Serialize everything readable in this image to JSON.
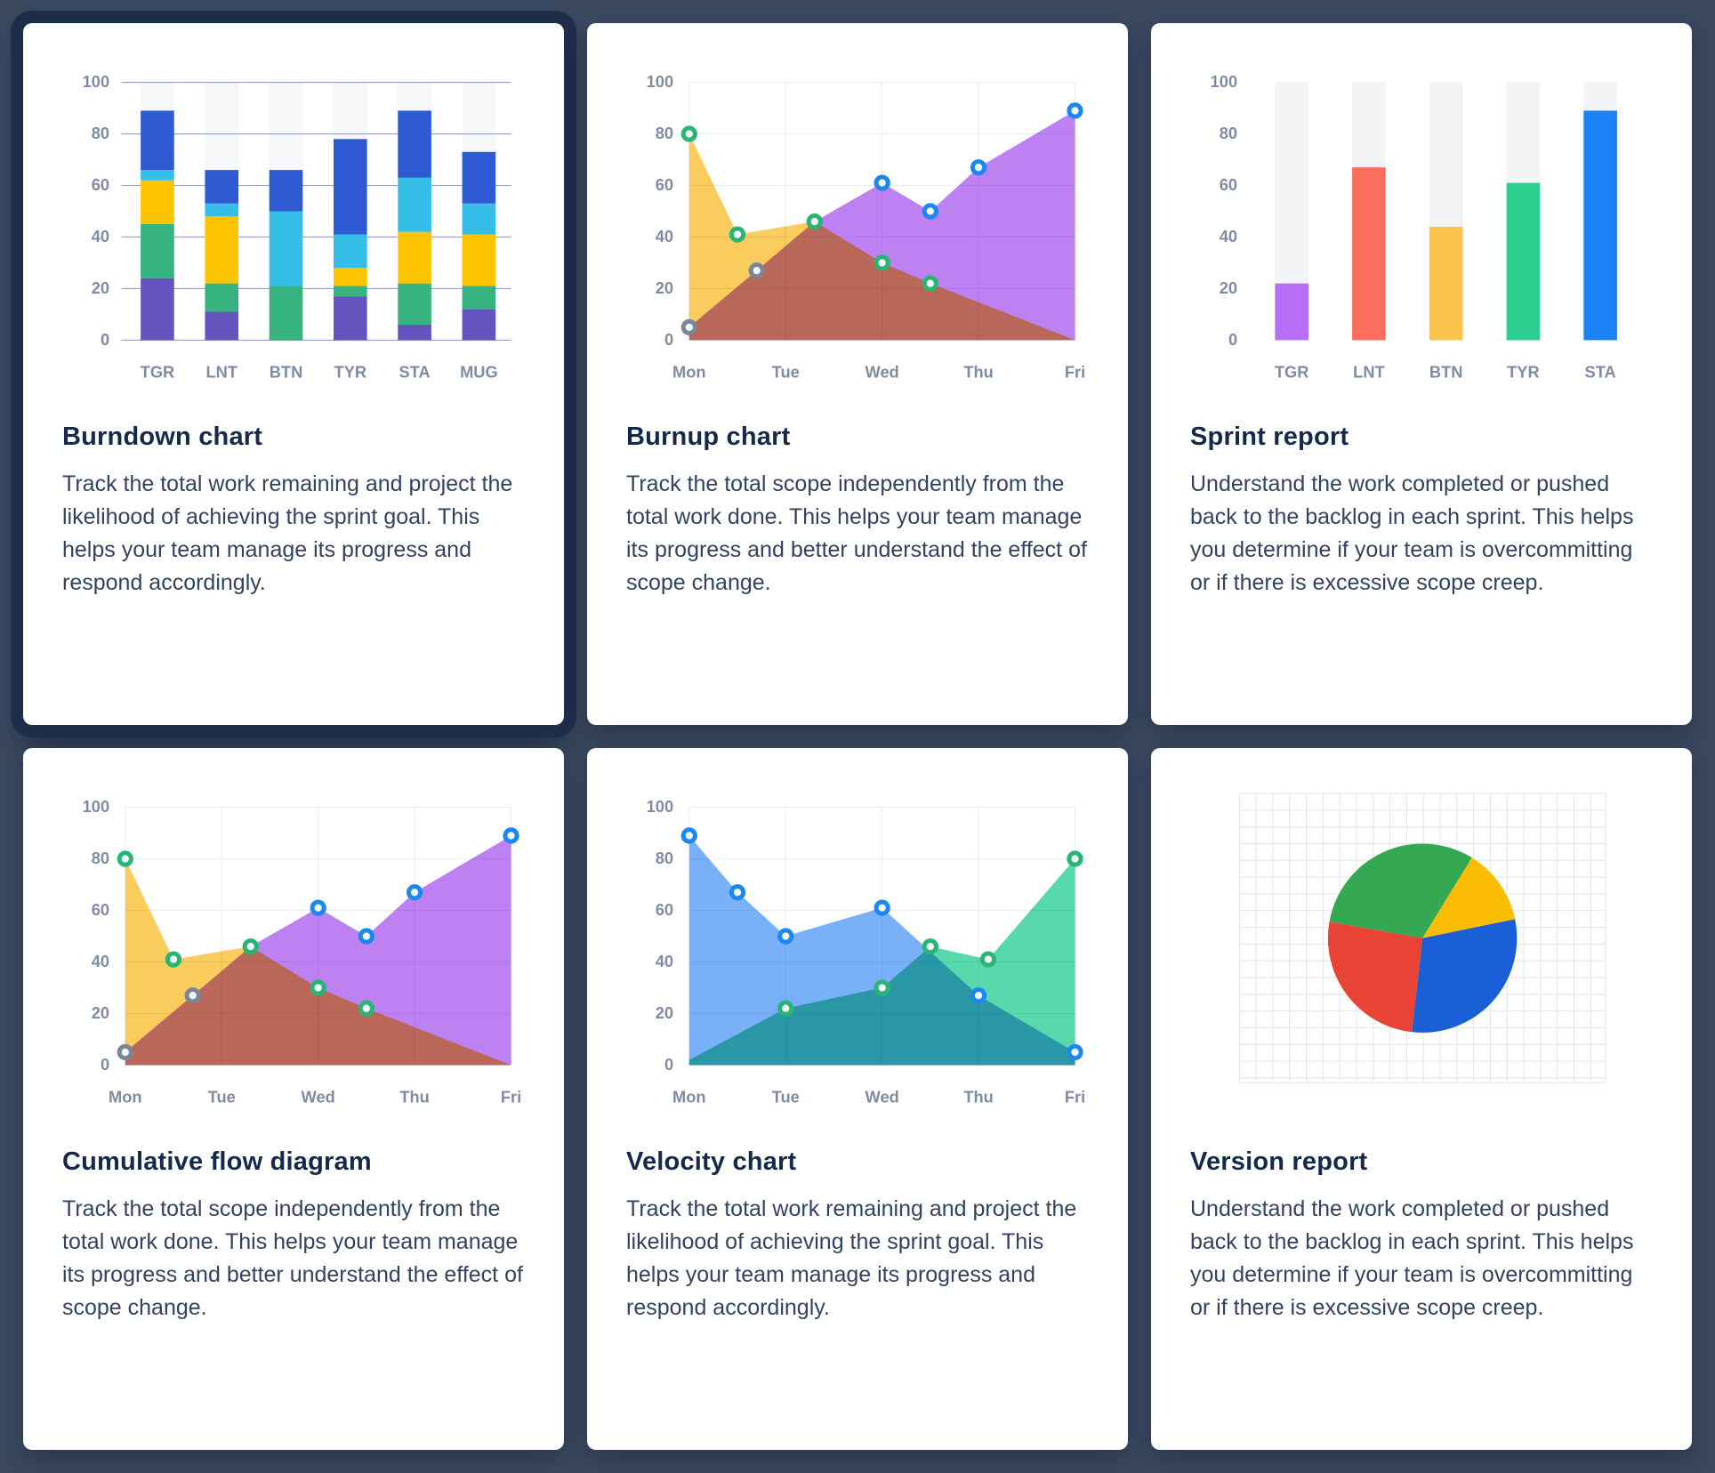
{
  "page": {
    "background": "#3a4860"
  },
  "cards": [
    {
      "id": "burndown",
      "title": "Burndown chart",
      "description": "Track the total work remaining and project the likelihood of achieving the sprint goal. This helps your team manage its progress and respond accordingly.",
      "highlighted": true
    },
    {
      "id": "burnup",
      "title": "Burnup chart",
      "description": "Track the total scope independently from the total work done. This helps your team manage its progress and better understand the effect of scope change.",
      "highlighted": false
    },
    {
      "id": "sprint-report",
      "title": "Sprint report",
      "description": "Understand the work completed or pushed back to the backlog in each sprint. This helps you determine if your team is overcommitting or if there is excessive scope creep.",
      "highlighted": false
    },
    {
      "id": "cumulative-flow",
      "title": "Cumulative flow diagram",
      "description": "Track the total scope independently from the total work done. This helps your team manage its progress and better understand the effect of scope change.",
      "highlighted": false
    },
    {
      "id": "velocity",
      "title": "Velocity chart",
      "description": "Track the total work remaining and project the likelihood of achieving the sprint goal. This helps your team manage its progress and respond accordingly.",
      "highlighted": false
    },
    {
      "id": "version-report",
      "title": "Version report",
      "description": "Understand the work completed or pushed back to the backlog in each sprint. This helps you determine if your team is overcommitting or if there is excessive scope creep.",
      "highlighted": false
    }
  ],
  "chart_data": [
    {
      "type": "bar",
      "stacked": true,
      "title": "Burndown chart",
      "categories": [
        "TGR",
        "LNT",
        "BTN",
        "TYR",
        "STA",
        "MUG"
      ],
      "series": [
        {
          "name": "segment-purple",
          "color": "#6554c0",
          "values": [
            24,
            11,
            0,
            17,
            6,
            12
          ]
        },
        {
          "name": "segment-green",
          "color": "#36b37e",
          "values": [
            21,
            11,
            21,
            4,
            16,
            9
          ]
        },
        {
          "name": "segment-yellow",
          "color": "#ffc400",
          "values": [
            17,
            26,
            0,
            7,
            20,
            20
          ]
        },
        {
          "name": "segment-cyan",
          "color": "#35bfe8",
          "values": [
            4,
            5,
            29,
            13,
            21,
            12
          ]
        },
        {
          "name": "segment-blue",
          "color": "#2f5bd2",
          "values": [
            23,
            13,
            16,
            37,
            26,
            20
          ]
        }
      ],
      "yticks": [
        0,
        20,
        40,
        60,
        80,
        100
      ],
      "ylim": [
        0,
        100
      ],
      "grid": "#90a2c0",
      "track": "#f6f7f9"
    },
    {
      "type": "area",
      "title": "Burnup chart",
      "x_labels": [
        "Mon",
        "Tue",
        "Wed",
        "Thu",
        "Fri"
      ],
      "xmax": 4,
      "yticks": [
        0,
        20,
        40,
        60,
        80,
        100
      ],
      "ylim": [
        0,
        100
      ],
      "grid": "#e9eef5",
      "series": [
        {
          "name": "total-scope",
          "color": "#f9c54b",
          "points": [
            [
              0,
              80
            ],
            [
              0.5,
              41
            ],
            [
              1.3,
              46
            ],
            [
              2,
              30
            ],
            [
              2.5,
              22
            ],
            [
              4,
              0
            ]
          ]
        },
        {
          "name": "work-done",
          "color": "#b673f1",
          "points": [
            [
              0,
              5
            ],
            [
              0.7,
              27
            ],
            [
              1.3,
              46
            ],
            [
              2,
              61
            ],
            [
              2.5,
              50
            ],
            [
              3,
              67
            ],
            [
              4,
              89
            ]
          ]
        }
      ],
      "dots": [
        {
          "x": 0,
          "y": 80,
          "ring": "#29b573"
        },
        {
          "x": 0.5,
          "y": 41,
          "ring": "#29b573"
        },
        {
          "x": 1.3,
          "y": 46,
          "ring": "#29b573"
        },
        {
          "x": 2,
          "y": 30,
          "ring": "#29b573"
        },
        {
          "x": 2.5,
          "y": 22,
          "ring": "#29b573"
        },
        {
          "x": 0,
          "y": 5,
          "ring": "#7b8794"
        },
        {
          "x": 0.7,
          "y": 27,
          "ring": "#7b8794"
        },
        {
          "x": 2,
          "y": 61,
          "ring": "#1d87f0"
        },
        {
          "x": 2.5,
          "y": 50,
          "ring": "#1d87f0"
        },
        {
          "x": 3,
          "y": 67,
          "ring": "#1d87f0"
        },
        {
          "x": 4,
          "y": 89,
          "ring": "#1d87f0"
        }
      ]
    },
    {
      "type": "bar",
      "stacked": false,
      "title": "Sprint report",
      "categories": [
        "TGR",
        "LNT",
        "BTN",
        "TYR",
        "STA"
      ],
      "values": [
        22,
        67,
        44,
        61,
        89
      ],
      "colors": [
        "#b76df5",
        "#fb6d5d",
        "#fac44d",
        "#2dce8f",
        "#1b83f5"
      ],
      "yticks": [
        0,
        20,
        40,
        60,
        80,
        100
      ],
      "ylim": [
        0,
        100
      ],
      "grid": null,
      "track": "#f3f4f6"
    },
    {
      "type": "area",
      "title": "Cumulative flow diagram",
      "x_labels": [
        "Mon",
        "Tue",
        "Wed",
        "Thu",
        "Fri"
      ],
      "xmax": 4,
      "yticks": [
        0,
        20,
        40,
        60,
        80,
        100
      ],
      "ylim": [
        0,
        100
      ],
      "grid": "#e9eef5",
      "series": [
        {
          "name": "total-scope",
          "color": "#f9c54b",
          "points": [
            [
              0,
              80
            ],
            [
              0.5,
              41
            ],
            [
              1.3,
              46
            ],
            [
              2,
              30
            ],
            [
              2.5,
              22
            ],
            [
              4,
              0
            ]
          ]
        },
        {
          "name": "work-done",
          "color": "#b673f1",
          "points": [
            [
              0,
              5
            ],
            [
              0.7,
              27
            ],
            [
              1.3,
              46
            ],
            [
              2,
              61
            ],
            [
              2.5,
              50
            ],
            [
              3,
              67
            ],
            [
              4,
              89
            ]
          ]
        }
      ],
      "dots": [
        {
          "x": 0,
          "y": 80,
          "ring": "#29b573"
        },
        {
          "x": 0.5,
          "y": 41,
          "ring": "#29b573"
        },
        {
          "x": 1.3,
          "y": 46,
          "ring": "#29b573"
        },
        {
          "x": 2,
          "y": 30,
          "ring": "#29b573"
        },
        {
          "x": 2.5,
          "y": 22,
          "ring": "#29b573"
        },
        {
          "x": 0,
          "y": 5,
          "ring": "#7b8794"
        },
        {
          "x": 0.7,
          "y": 27,
          "ring": "#7b8794"
        },
        {
          "x": 2,
          "y": 61,
          "ring": "#1d87f0"
        },
        {
          "x": 2.5,
          "y": 50,
          "ring": "#1d87f0"
        },
        {
          "x": 3,
          "y": 67,
          "ring": "#1d87f0"
        },
        {
          "x": 4,
          "y": 89,
          "ring": "#1d87f0"
        }
      ]
    },
    {
      "type": "area",
      "title": "Velocity chart",
      "x_labels": [
        "Mon",
        "Tue",
        "Wed",
        "Thu",
        "Fri"
      ],
      "xmax": 4,
      "yticks": [
        0,
        20,
        40,
        60,
        80,
        100
      ],
      "ylim": [
        0,
        100
      ],
      "grid": "#e9eef5",
      "series": [
        {
          "name": "work-remaining",
          "color": "#6aa8f8",
          "points": [
            [
              0,
              89
            ],
            [
              0.5,
              67
            ],
            [
              1,
              50
            ],
            [
              2,
              61
            ],
            [
              3,
              27
            ],
            [
              4,
              5
            ]
          ]
        },
        {
          "name": "work-completed",
          "color": "#46d5a2",
          "points": [
            [
              0,
              2
            ],
            [
              1,
              22
            ],
            [
              2,
              30
            ],
            [
              2.5,
              46
            ],
            [
              3.1,
              41
            ],
            [
              4,
              80
            ]
          ]
        }
      ],
      "dots": [
        {
          "x": 0,
          "y": 89,
          "ring": "#1d87f0"
        },
        {
          "x": 0.5,
          "y": 67,
          "ring": "#1d87f0"
        },
        {
          "x": 1,
          "y": 50,
          "ring": "#1d87f0"
        },
        {
          "x": 2,
          "y": 61,
          "ring": "#1d87f0"
        },
        {
          "x": 3,
          "y": 27,
          "ring": "#1d87f0"
        },
        {
          "x": 4,
          "y": 5,
          "ring": "#1d87f0"
        },
        {
          "x": 1,
          "y": 22,
          "ring": "#29b573"
        },
        {
          "x": 2,
          "y": 30,
          "ring": "#29b573"
        },
        {
          "x": 2.5,
          "y": 46,
          "ring": "#29b573"
        },
        {
          "x": 3.1,
          "y": 41,
          "ring": "#29b573"
        },
        {
          "x": 4,
          "y": 80,
          "ring": "#29b573"
        }
      ]
    },
    {
      "type": "pie",
      "title": "Version report",
      "start_deg": -80,
      "grid_line": "#e4e7eb",
      "slices": [
        {
          "label": "green",
          "value": 31,
          "color": "#34a853"
        },
        {
          "label": "yellow",
          "value": 13,
          "color": "#fbbc04"
        },
        {
          "label": "blue",
          "value": 30,
          "color": "#1a5fd6"
        },
        {
          "label": "red",
          "value": 26,
          "color": "#e94335"
        }
      ]
    }
  ]
}
